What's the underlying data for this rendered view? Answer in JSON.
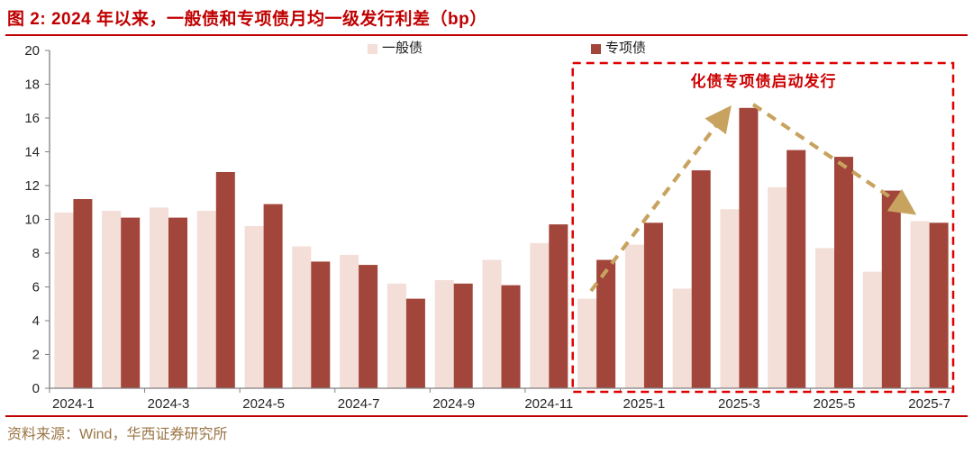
{
  "header": {
    "title": "图 2: 2024 年以来，一般债和专项债月均一级发行利差（bp）"
  },
  "legend": [
    {
      "label": "一般债",
      "color": "#F3DED8"
    },
    {
      "label": "专项债",
      "color": "#A2453A"
    }
  ],
  "annotation": {
    "label": "化债专项债启动发行"
  },
  "footer": {
    "source": "资料来源：Wind，华西证券研究所"
  },
  "colors": {
    "title_red": "#C00000",
    "general_bar": "#F3DED8",
    "special_bar": "#A2453A",
    "highlight_box_red": "#E00000",
    "annotation_red": "#CC0000",
    "trend_arrow_tan": "#C8A35F",
    "axis_gray": "#808080",
    "tick_text": "#262626",
    "source_brown": "#9A7544"
  },
  "chart_data": {
    "type": "bar",
    "title": "2024 年以来，一般债和专项债月均一级发行利差（bp）",
    "categories": [
      "2024-1",
      "2024-2",
      "2024-3",
      "2024-4",
      "2024-5",
      "2024-6",
      "2024-7",
      "2024-8",
      "2024-9",
      "2024-10",
      "2024-11",
      "2024-12",
      "2025-1",
      "2025-2",
      "2025-3",
      "2025-4",
      "2025-5",
      "2025-6",
      "2025-7"
    ],
    "series": [
      {
        "name": "一般债",
        "color": "#F3DED8",
        "values": [
          10.4,
          10.5,
          10.7,
          10.5,
          9.6,
          8.4,
          7.9,
          6.2,
          6.4,
          7.6,
          8.6,
          5.3,
          8.5,
          5.9,
          10.6,
          11.9,
          8.3,
          6.9,
          9.9
        ]
      },
      {
        "name": "专项债",
        "color": "#A2453A",
        "values": [
          11.2,
          10.1,
          10.1,
          12.8,
          10.9,
          7.5,
          7.3,
          5.3,
          6.2,
          6.1,
          9.7,
          7.6,
          9.8,
          12.9,
          16.6,
          14.1,
          13.7,
          11.7,
          9.8
        ]
      }
    ],
    "xlabel": "",
    "ylabel": "",
    "ylim": [
      0,
      20
    ],
    "ytick_step": 2,
    "xtick_labels": [
      "2024-1",
      "2024-3",
      "2024-5",
      "2024-7",
      "2024-9",
      "2024-11",
      "2025-1",
      "2025-3",
      "2025-5",
      "2025-7"
    ],
    "grid": false,
    "legend_position": "top-center",
    "highlight_box": {
      "label": "化债专项债启动发行",
      "start_category": "2024-12",
      "end_category": "2025-7"
    },
    "trend_arrow": {
      "rise_from": "2024-12",
      "peak": "2025-3",
      "fall_to": "2025-7"
    }
  }
}
